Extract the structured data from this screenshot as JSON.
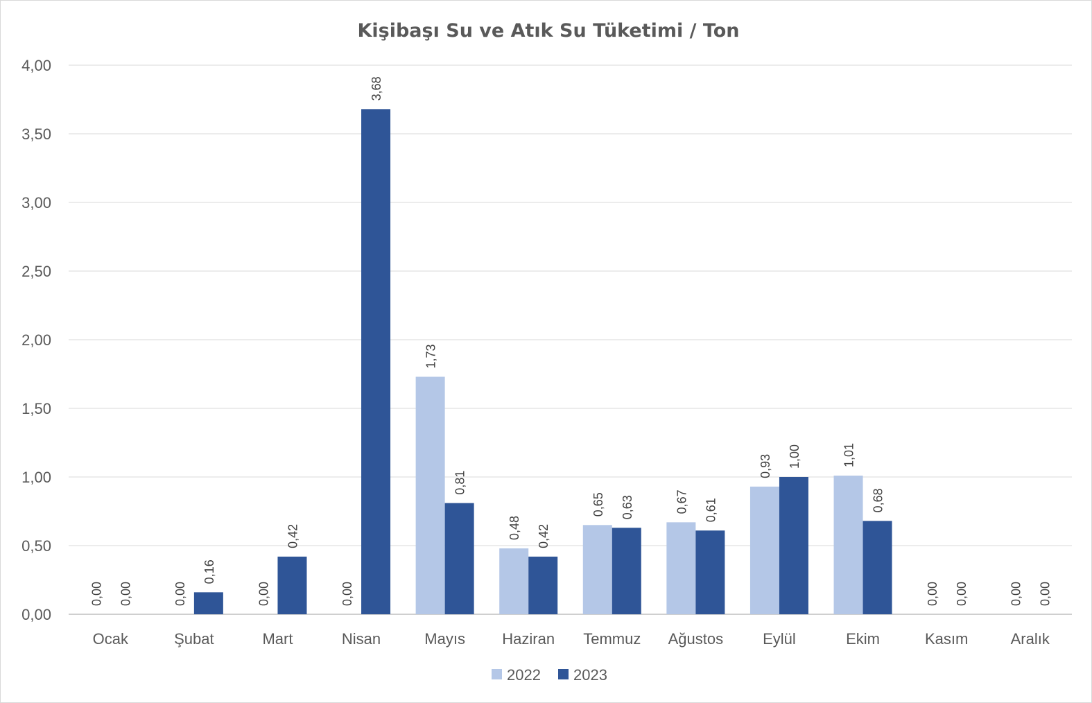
{
  "chart_data": {
    "type": "bar",
    "title": "Kişibaşı Su ve Atık Su Tüketimi / Ton",
    "xlabel": "",
    "ylabel": "",
    "ylim": [
      0,
      4
    ],
    "yticks": [
      0,
      0.5,
      1,
      1.5,
      2,
      2.5,
      3,
      3.5,
      4
    ],
    "ytick_labels": [
      "0,00",
      "0,50",
      "1,00",
      "1,50",
      "2,00",
      "2,50",
      "3,00",
      "3,50",
      "4,00"
    ],
    "categories": [
      "Ocak",
      "Şubat",
      "Mart",
      "Nisan",
      "Mayıs",
      "Haziran",
      "Temmuz",
      "Ağustos",
      "Eylül",
      "Ekim",
      "Kasım",
      "Aralık"
    ],
    "series": [
      {
        "name": "2022",
        "color": "#b4c7e7",
        "values": [
          0,
          0,
          0,
          0,
          1.73,
          0.48,
          0.65,
          0.67,
          0.93,
          1.01,
          0,
          0
        ],
        "labels": [
          "0,00",
          "0,00",
          "0,00",
          "0,00",
          "1,73",
          "0,48",
          "0,65",
          "0,67",
          "0,93",
          "1,01",
          "0,00",
          "0,00"
        ]
      },
      {
        "name": "2023",
        "color": "#2f5597",
        "values": [
          0,
          0.16,
          0.42,
          3.68,
          0.81,
          0.42,
          0.63,
          0.61,
          1.0,
          0.68,
          0,
          0
        ],
        "labels": [
          "0,00",
          "0,16",
          "0,42",
          "3,68",
          "0,81",
          "0,42",
          "0,63",
          "0,61",
          "1,00",
          "0,68",
          "0,00",
          "0,00"
        ]
      }
    ],
    "grid": true,
    "legend": "bottom"
  }
}
